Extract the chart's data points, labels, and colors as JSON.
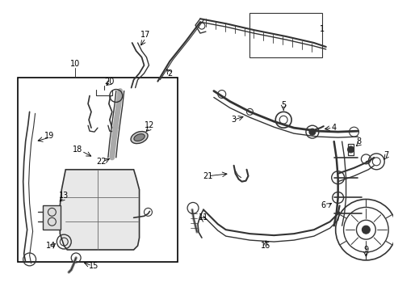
{
  "background_color": "#ffffff",
  "line_color": "#333333",
  "figsize": [
    4.89,
    3.6
  ],
  "dpi": 100
}
